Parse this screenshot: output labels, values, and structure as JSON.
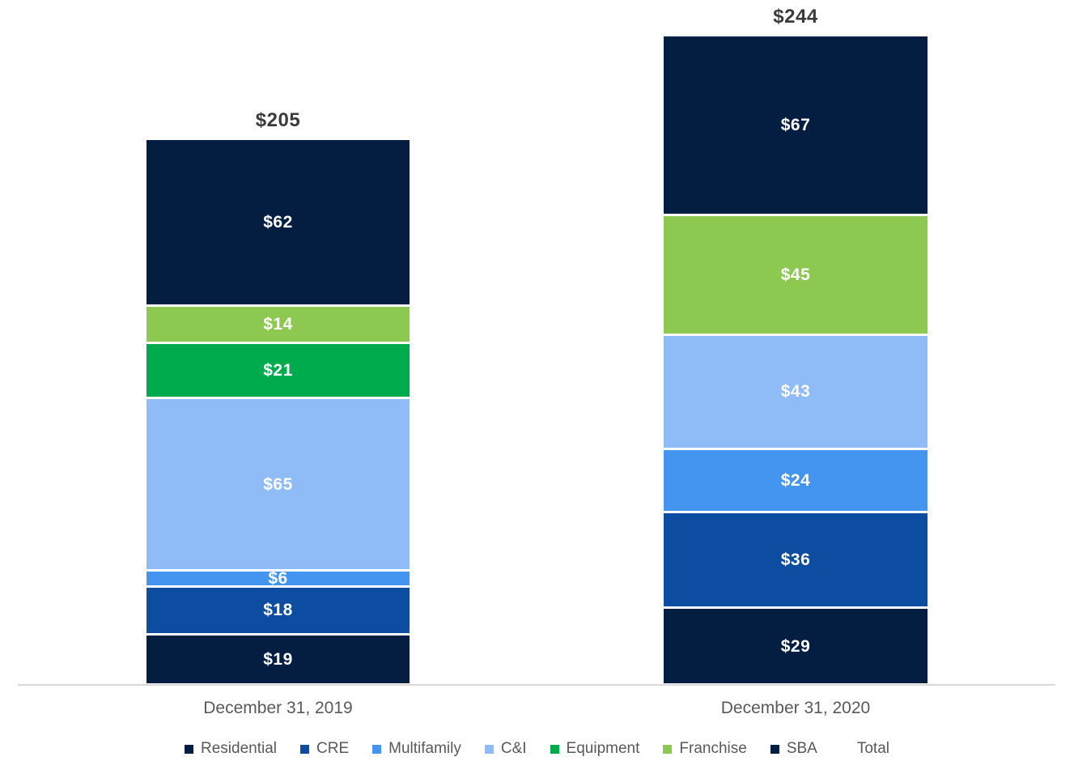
{
  "chart_data": {
    "type": "bar",
    "subtype": "stacked_column",
    "title": "",
    "xlabel": "",
    "ylabel": "",
    "grid": false,
    "legend_position": "bottom",
    "value_prefix": "$",
    "categories": [
      "December 31, 2019",
      "December 31, 2020"
    ],
    "series": [
      {
        "name": "Residential",
        "color": "#041E42",
        "values": [
          19,
          29
        ]
      },
      {
        "name": "CRE",
        "color": "#0C4DA2",
        "values": [
          18,
          36
        ]
      },
      {
        "name": "Multifamily",
        "color": "#4495F0",
        "values": [
          6,
          24
        ]
      },
      {
        "name": "C&I",
        "color": "#8FBBF6",
        "values": [
          65,
          43
        ]
      },
      {
        "name": "Equipment",
        "color": "#00AB4E",
        "values": [
          21,
          0
        ]
      },
      {
        "name": "Franchise",
        "color": "#8DC950",
        "values": [
          14,
          45
        ]
      },
      {
        "name": "SBA",
        "color": "#041E42",
        "values": [
          62,
          67
        ]
      }
    ],
    "stack_order_bottom_to_top": [
      "Residential",
      "CRE",
      "Multifamily",
      "C&I",
      "Equipment",
      "Franchise",
      "SBA"
    ],
    "totals": [
      205,
      244
    ],
    "total_labels": [
      "$205",
      "$244"
    ],
    "segment_labels_2019": [
      "$19",
      "$18",
      "$6",
      "$65",
      "$21",
      "$14",
      "$62"
    ],
    "segment_labels_2020": [
      "$29",
      "$36",
      "$24",
      "$43",
      "$45",
      "$67"
    ],
    "legend": [
      {
        "label": "Residential",
        "color": "#041E42"
      },
      {
        "label": "CRE",
        "color": "#0C4DA2"
      },
      {
        "label": "Multifamily",
        "color": "#4495F0"
      },
      {
        "label": "C&I",
        "color": "#8FBBF6"
      },
      {
        "label": "Equipment",
        "color": "#00AB4E"
      },
      {
        "label": "Franchise",
        "color": "#8DC950"
      },
      {
        "label": "SBA",
        "color": "#041E42"
      },
      {
        "label": "Total",
        "color": null
      }
    ],
    "axis_line_color": "#D9D9D9"
  }
}
